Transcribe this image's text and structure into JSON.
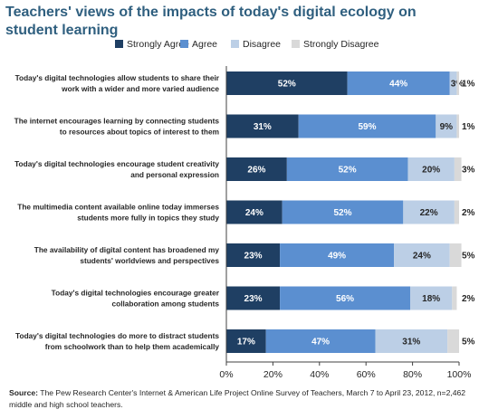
{
  "title": "Teachers' views of the impacts of today's digital ecology on student learning",
  "source_label": "Source:",
  "source_text": "The Pew Research Center's Internet & American Life Project Online Survey of Teachers, March 7 to April 23, 2012, n=2,462 middle and high school teachers.",
  "colors": {
    "strongly_agree": "#1f3f63",
    "agree": "#5b8fd0",
    "disagree": "#bccfe6",
    "strongly_disagree": "#d9d9d9",
    "title": "#2f5f7f"
  },
  "chart_data": {
    "type": "bar",
    "orientation": "horizontal",
    "stacked": true,
    "title": "Teachers' views of the impacts of today's digital ecology on student learning",
    "legend_position": "top",
    "categories": [
      "Today's digital technologies allow students to share their work with a wider and more varied audience",
      "The internet encourages learning by connecting students to resources about topics of interest to them",
      "Today's digital technologies encourage student creativity and personal expression",
      "The multimedia content available online today immerses students more fully in topics they study",
      "The availability of digital content has broadened my students' worldviews and perspectives",
      "Today's digital technologies encourage greater collaboration among students",
      "Today's digital technologies do more to distract students from schoolwork than to help them academically"
    ],
    "category_lines": [
      [
        "Today's digital technologies allow students to share their",
        "work with a wider and more varied audience"
      ],
      [
        "The internet encourages learning by connecting students",
        "to resources about topics of interest to them"
      ],
      [
        "Today's digital technologies encourage student creativity",
        "and personal expression"
      ],
      [
        "The multimedia content available online today immerses",
        "students more fully in topics they study"
      ],
      [
        "The availability of digital content has broadened my",
        "students' worldviews and perspectives"
      ],
      [
        "Today's digital technologies encourage greater",
        "collaboration among students"
      ],
      [
        "Today's digital technologies do more to distract students",
        "from schoolwork than to help them academically"
      ]
    ],
    "series": [
      {
        "name": "Strongly Agree",
        "values": [
          52,
          31,
          26,
          24,
          23,
          23,
          17
        ],
        "labels": [
          "52%",
          "31%",
          "26%",
          "24%",
          "23%",
          "23%",
          "17%"
        ]
      },
      {
        "name": "Agree",
        "values": [
          44,
          59,
          52,
          52,
          49,
          56,
          47
        ],
        "labels": [
          "44%",
          "59%",
          "52%",
          "52%",
          "49%",
          "56%",
          "47%"
        ]
      },
      {
        "name": "Disagree",
        "values": [
          3,
          9,
          20,
          22,
          24,
          18,
          31
        ],
        "labels": [
          "3%",
          "9%",
          "20%",
          "22%",
          "24%",
          "18%",
          "31%"
        ]
      },
      {
        "name": "Strongly Disagree",
        "values": [
          1,
          1,
          3,
          2,
          5,
          2,
          5
        ],
        "labels": [
          "1%",
          "1%",
          "3%",
          "2%",
          "5%",
          "2%",
          "5%"
        ]
      }
    ],
    "xlim": [
      0,
      100
    ],
    "xticks": [
      "0%",
      "20%",
      "40%",
      "60%",
      "80%",
      "100%"
    ],
    "grid": false
  }
}
